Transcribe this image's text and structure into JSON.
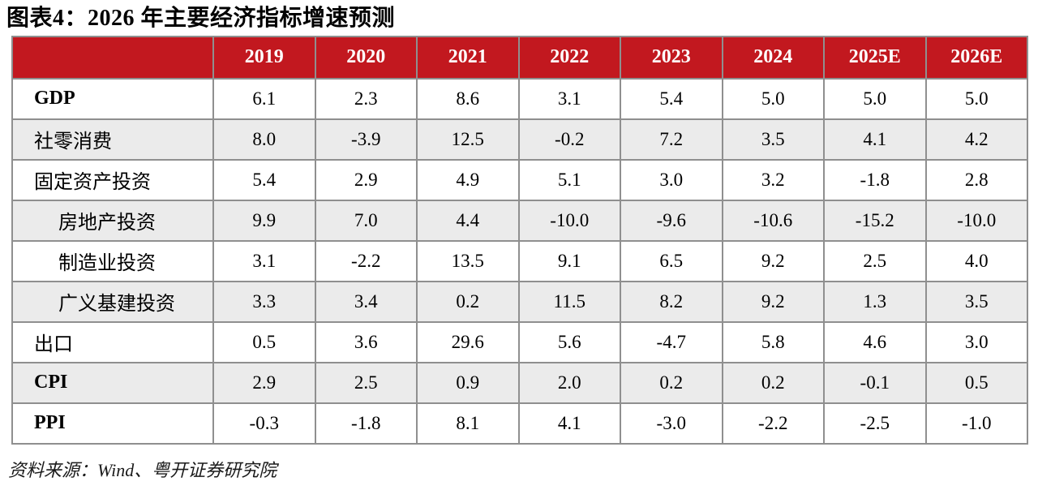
{
  "title": "图表4：2026 年主要经济指标增速预测",
  "source": "资料来源：Wind、粤开证券研究院",
  "colors": {
    "header_bg": "#c2181f",
    "header_text": "#ffffff",
    "row_alt_bg": "#ebebeb",
    "border": "#8f8f8f"
  },
  "table": {
    "columns": [
      "",
      "2019",
      "2020",
      "2021",
      "2022",
      "2023",
      "2024",
      "2025E",
      "2026E"
    ],
    "rows": [
      {
        "label": "GDP",
        "bold": true,
        "indent": false,
        "values": [
          "6.1",
          "2.3",
          "8.6",
          "3.1",
          "5.4",
          "5.0",
          "5.0",
          "5.0"
        ]
      },
      {
        "label": "社零消费",
        "bold": false,
        "indent": false,
        "values": [
          "8.0",
          "-3.9",
          "12.5",
          "-0.2",
          "7.2",
          "3.5",
          "4.1",
          "4.2"
        ]
      },
      {
        "label": "固定资产投资",
        "bold": false,
        "indent": false,
        "values": [
          "5.4",
          "2.9",
          "4.9",
          "5.1",
          "3.0",
          "3.2",
          "-1.8",
          "2.8"
        ]
      },
      {
        "label": "房地产投资",
        "bold": false,
        "indent": true,
        "values": [
          "9.9",
          "7.0",
          "4.4",
          "-10.0",
          "-9.6",
          "-10.6",
          "-15.2",
          "-10.0"
        ]
      },
      {
        "label": "制造业投资",
        "bold": false,
        "indent": true,
        "values": [
          "3.1",
          "-2.2",
          "13.5",
          "9.1",
          "6.5",
          "9.2",
          "2.5",
          "4.0"
        ]
      },
      {
        "label": "广义基建投资",
        "bold": false,
        "indent": true,
        "values": [
          "3.3",
          "3.4",
          "0.2",
          "11.5",
          "8.2",
          "9.2",
          "1.3",
          "3.5"
        ]
      },
      {
        "label": "出口",
        "bold": false,
        "indent": false,
        "values": [
          "0.5",
          "3.6",
          "29.6",
          "5.6",
          "-4.7",
          "5.8",
          "4.6",
          "3.0"
        ]
      },
      {
        "label": "CPI",
        "bold": true,
        "indent": false,
        "values": [
          "2.9",
          "2.5",
          "0.9",
          "2.0",
          "0.2",
          "0.2",
          "-0.1",
          "0.5"
        ]
      },
      {
        "label": "PPI",
        "bold": true,
        "indent": false,
        "values": [
          "-0.3",
          "-1.8",
          "8.1",
          "4.1",
          "-3.0",
          "-2.2",
          "-2.5",
          "-1.0"
        ]
      }
    ]
  },
  "chart_data": {
    "type": "table",
    "title": "图表4：2026 年主要经济指标增速预测",
    "categories": [
      "2019",
      "2020",
      "2021",
      "2022",
      "2023",
      "2024",
      "2025E",
      "2026E"
    ],
    "series": [
      {
        "name": "GDP",
        "values": [
          6.1,
          2.3,
          8.6,
          3.1,
          5.4,
          5.0,
          5.0,
          5.0
        ]
      },
      {
        "name": "社零消费",
        "values": [
          8.0,
          -3.9,
          12.5,
          -0.2,
          7.2,
          3.5,
          4.1,
          4.2
        ]
      },
      {
        "name": "固定资产投资",
        "values": [
          5.4,
          2.9,
          4.9,
          5.1,
          3.0,
          3.2,
          -1.8,
          2.8
        ]
      },
      {
        "name": "房地产投资",
        "values": [
          9.9,
          7.0,
          4.4,
          -10.0,
          -9.6,
          -10.6,
          -15.2,
          -10.0
        ]
      },
      {
        "name": "制造业投资",
        "values": [
          3.1,
          -2.2,
          13.5,
          9.1,
          6.5,
          9.2,
          2.5,
          4.0
        ]
      },
      {
        "name": "广义基建投资",
        "values": [
          3.3,
          3.4,
          0.2,
          11.5,
          8.2,
          9.2,
          1.3,
          3.5
        ]
      },
      {
        "name": "出口",
        "values": [
          0.5,
          3.6,
          29.6,
          5.6,
          -4.7,
          5.8,
          4.6,
          3.0
        ]
      },
      {
        "name": "CPI",
        "values": [
          2.9,
          2.5,
          0.9,
          2.0,
          0.2,
          0.2,
          -0.1,
          0.5
        ]
      },
      {
        "name": "PPI",
        "values": [
          -0.3,
          -1.8,
          8.1,
          4.1,
          -3.0,
          -2.2,
          -2.5,
          -1.0
        ]
      }
    ],
    "source": "资料来源：Wind、粤开证券研究院"
  }
}
